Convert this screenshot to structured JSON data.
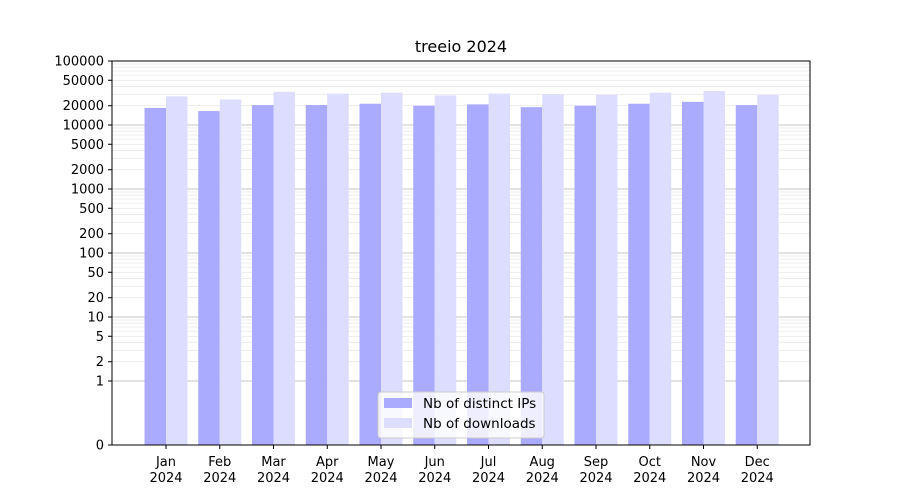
{
  "chart_data": {
    "type": "bar",
    "title": "treeio 2024",
    "xlabel": "",
    "ylabel": "",
    "yscale": "symlog",
    "ylim": [
      0,
      100000
    ],
    "y_ticks": [
      0,
      1,
      2,
      5,
      10,
      20,
      50,
      100,
      200,
      500,
      1000,
      2000,
      5000,
      10000,
      20000,
      50000,
      100000
    ],
    "y_tick_labels": [
      "0",
      "1",
      "2",
      "5",
      "10",
      "20",
      "50",
      "100",
      "200",
      "500",
      "1000",
      "2000",
      "5000",
      "10000",
      "20000",
      "50000",
      "100000"
    ],
    "categories": [
      [
        "Jan",
        "2024"
      ],
      [
        "Feb",
        "2024"
      ],
      [
        "Mar",
        "2024"
      ],
      [
        "Apr",
        "2024"
      ],
      [
        "May",
        "2024"
      ],
      [
        "Jun",
        "2024"
      ],
      [
        "Jul",
        "2024"
      ],
      [
        "Aug",
        "2024"
      ],
      [
        "Sep",
        "2024"
      ],
      [
        "Oct",
        "2024"
      ],
      [
        "Nov",
        "2024"
      ],
      [
        "Dec",
        "2024"
      ]
    ],
    "series": [
      {
        "name": "Nb of distinct IPs",
        "color": "#aaaaff",
        "values": [
          18500,
          16500,
          20500,
          20500,
          21500,
          20000,
          21000,
          19000,
          20000,
          21500,
          23000,
          20500
        ]
      },
      {
        "name": "Nb of downloads",
        "color": "#ddddff",
        "values": [
          28000,
          25000,
          33000,
          31000,
          32000,
          29000,
          31000,
          30500,
          29500,
          32000,
          34000,
          29500
        ]
      }
    ],
    "legend_position": "lower-center",
    "grid": true
  }
}
